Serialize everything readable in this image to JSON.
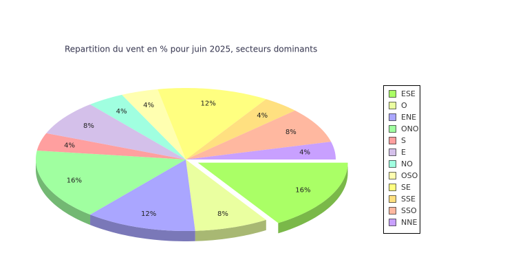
{
  "chart_data": {
    "type": "pie",
    "title": "Repartition du vent en % pour juin 2025, secteurs dominants",
    "categories": [
      "ESE",
      "O",
      "ENE",
      "ONO",
      "S",
      "E",
      "NO",
      "OSO",
      "SE",
      "SSE",
      "SSO",
      "NNE"
    ],
    "values": [
      16,
      8,
      12,
      16,
      4,
      8,
      4,
      4,
      12,
      4,
      8,
      4
    ],
    "value_labels": [
      "16%",
      "8%",
      "12%",
      "16%",
      "4%",
      "8%",
      "4%",
      "4%",
      "12%",
      "4%",
      "8%",
      "4%"
    ],
    "colors": [
      "#aaff66",
      "#eaffa0",
      "#aaa6ff",
      "#a0ffa0",
      "#ff9f9f",
      "#d4c0ea",
      "#a0ffe0",
      "#ffffb0",
      "#ffff80",
      "#ffe080",
      "#ffb8a0",
      "#c8a0ff"
    ],
    "exploded": [
      "ESE"
    ],
    "legend": "right"
  }
}
